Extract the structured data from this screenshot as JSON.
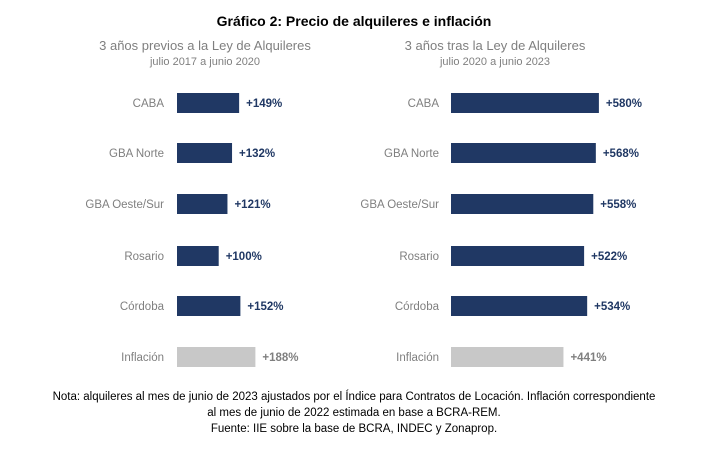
{
  "title": "Gráfico 2: Precio de alquileres e inflación",
  "colors": {
    "bar": "#203864",
    "inflation_bar": "#c8c8c8",
    "category_text": "#7f7f7f",
    "value_text": "#203864",
    "inflation_value_text": "#7f7f7f"
  },
  "chart_data": [
    {
      "type": "bar",
      "orientation": "horizontal",
      "title": "3 años previos a la Ley de Alquileres",
      "subtitle": "julio 2017 a junio 2020",
      "categories": [
        "CABA",
        "GBA Norte",
        "GBA Oeste/Sur",
        "Rosario",
        "Córdoba",
        "Inflación"
      ],
      "values": [
        149,
        132,
        121,
        100,
        152,
        188
      ],
      "labels": [
        "+149%",
        "+132%",
        "+121%",
        "+100%",
        "+152%",
        "+188%"
      ],
      "highlight_category": "Inflación",
      "axis_visible": false
    },
    {
      "type": "bar",
      "orientation": "horizontal",
      "title": "3 años tras la Ley de Alquileres",
      "subtitle": "julio 2020 a junio 2023",
      "categories": [
        "CABA",
        "GBA Norte",
        "GBA Oeste/Sur",
        "Rosario",
        "Córdoba",
        "Inflación"
      ],
      "values": [
        580,
        568,
        558,
        522,
        534,
        441
      ],
      "labels": [
        "+580%",
        "+568%",
        "+558%",
        "+522%",
        "+534%",
        "+441%"
      ],
      "highlight_category": "Inflación",
      "axis_visible": false
    }
  ],
  "notes": [
    "Nota: alquileres al mes de junio de 2023 ajustados por el Índice para Contratos de Locación. Inflación correspondiente",
    "al mes de junio de 2022 estimada en base a BCRA-REM.",
    "Fuente: IIE sobre la base de BCRA, INDEC y Zonaprop."
  ]
}
